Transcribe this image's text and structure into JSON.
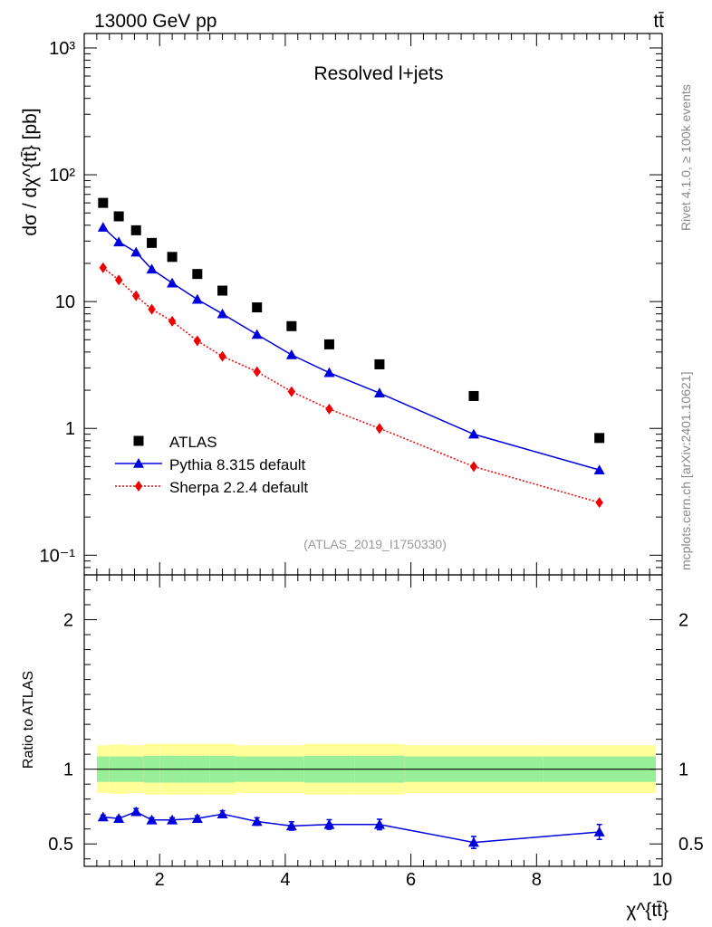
{
  "header": {
    "energy_label": "13000 GeV pp",
    "process_label": "tt̄"
  },
  "side_labels": {
    "rivet": "Rivet 4.1.0, ≥ 100k events",
    "mcplots": "mcplots.cern.ch [arXiv:2401.10621]"
  },
  "chart_data": [
    {
      "type": "scatter",
      "title": "Resolved l+jets",
      "xlabel": "χ^{tt̄}",
      "ylabel": "dσ / dχ^{tt̄} [pb]",
      "yscale": "log",
      "xlim": [
        0.8,
        10.0
      ],
      "ylim": [
        0.07,
        1300
      ],
      "y_tick_labels": [
        "10⁻¹",
        "1",
        "10",
        "10²",
        "10³"
      ],
      "analysis_label": "(ATLAS_2019_I1750330)",
      "legend_position": "lower-left",
      "x": [
        1.1,
        1.35,
        1.625,
        1.875,
        2.2,
        2.6,
        3.0,
        3.55,
        4.1,
        4.7,
        5.5,
        7.0,
        9.0
      ],
      "series": [
        {
          "name": "ATLAS",
          "color": "#000000",
          "marker": "square",
          "values": [
            60,
            47,
            36.5,
            29,
            22.5,
            16.5,
            12.2,
            9.0,
            6.4,
            4.6,
            3.2,
            1.8,
            0.84
          ]
        },
        {
          "name": "Pythia 8.315 default",
          "color": "#0000dd",
          "marker": "triangle",
          "line": "solid",
          "values": [
            38.5,
            29.5,
            24.5,
            18.0,
            14.0,
            10.4,
            8.0,
            5.5,
            3.8,
            2.75,
            1.9,
            0.9,
            0.47
          ]
        },
        {
          "name": "Sherpa 2.2.4 default",
          "color": "#ee0000",
          "marker": "diamond",
          "line": "dotted",
          "values": [
            18.5,
            14.8,
            11.1,
            8.7,
            7.0,
            4.9,
            3.7,
            2.8,
            1.95,
            1.42,
            1.0,
            0.5,
            0.26
          ]
        }
      ]
    },
    {
      "type": "scatter",
      "ylabel": "Ratio to ATLAS",
      "xlabel": "χ^{tt̄}",
      "xlim": [
        0.8,
        10.0
      ],
      "ylim": [
        0.35,
        2.3
      ],
      "x_ticks": [
        2,
        4,
        6,
        8,
        10
      ],
      "y_ticks": [
        0.5,
        1,
        2
      ],
      "x_edges": [
        1.0,
        1.2,
        1.5,
        1.75,
        2.0,
        2.4,
        2.8,
        3.2,
        3.9,
        4.3,
        5.1,
        5.9,
        8.1,
        9.9
      ],
      "band_yellow_half": [
        0.16,
        0.165,
        0.16,
        0.17,
        0.17,
        0.17,
        0.17,
        0.16,
        0.16,
        0.17,
        0.17,
        0.16,
        0.16
      ],
      "band_green_half": [
        0.085,
        0.085,
        0.085,
        0.09,
        0.09,
        0.09,
        0.09,
        0.085,
        0.085,
        0.09,
        0.09,
        0.085,
        0.085
      ],
      "x": [
        1.1,
        1.35,
        1.625,
        1.875,
        2.2,
        2.6,
        3.0,
        3.55,
        4.1,
        4.7,
        5.5,
        7.0,
        9.0
      ],
      "series": [
        {
          "name": "Pythia 8.315 default",
          "color": "#0000dd",
          "marker": "triangle",
          "values": [
            0.68,
            0.67,
            0.715,
            0.66,
            0.66,
            0.67,
            0.7,
            0.65,
            0.62,
            0.63,
            0.63,
            0.51,
            0.58
          ],
          "errors": [
            0.012,
            0.012,
            0.022,
            0.015,
            0.015,
            0.018,
            0.022,
            0.025,
            0.028,
            0.032,
            0.035,
            0.04,
            0.05
          ]
        }
      ]
    }
  ]
}
